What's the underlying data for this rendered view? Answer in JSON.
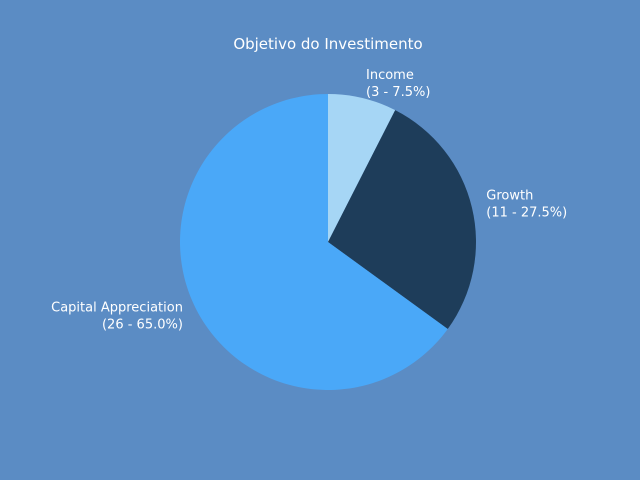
{
  "chart_data": {
    "type": "pie",
    "title": "Objetivo do Investimento",
    "slices": [
      {
        "label": "Income",
        "value": 3,
        "percent": 7.5,
        "color": "#a6d6f5",
        "label_lines": [
          "Income",
          "(3 - 7.5%)"
        ]
      },
      {
        "label": "Growth",
        "value": 11,
        "percent": 27.5,
        "color": "#1e3d5a",
        "label_lines": [
          "Growth",
          "(11 - 27.5%)"
        ]
      },
      {
        "label": "Capital Appreciation",
        "value": 26,
        "percent": 65.0,
        "color": "#4aa8f8",
        "label_lines": [
          "Capital Appreciation",
          "(26 - 65.0%)"
        ]
      }
    ],
    "start_angle": "top",
    "direction": "clockwise"
  },
  "colors": {
    "background": "#5b8cc4",
    "text": "#ffffff"
  }
}
